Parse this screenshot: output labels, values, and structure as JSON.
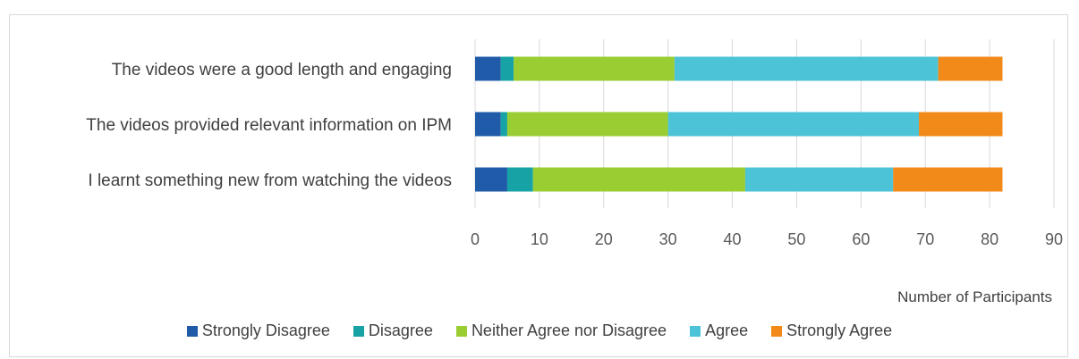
{
  "chart_data": {
    "type": "bar",
    "orientation": "horizontal",
    "stacked": true,
    "categories": [
      "The videos were a good length and engaging",
      "The videos provided relevant information on IPM",
      "I learnt something new from watching the videos"
    ],
    "series": [
      {
        "name": "Strongly Disagree",
        "color": "#1f5ba8",
        "values": [
          4,
          4,
          5
        ]
      },
      {
        "name": "Disagree",
        "color": "#17a2a6",
        "values": [
          2,
          1,
          4
        ]
      },
      {
        "name": "Neither Agree nor Disagree",
        "color": "#9acd32",
        "values": [
          25,
          25,
          33
        ]
      },
      {
        "name": "Agree",
        "color": "#4cc3d6",
        "values": [
          41,
          39,
          23
        ]
      },
      {
        "name": "Strongly Agree",
        "color": "#f28a1a",
        "values": [
          10,
          13,
          17
        ]
      }
    ],
    "xlabel": "Number of Participants",
    "xlim": [
      0,
      90
    ],
    "xticks": [
      "0",
      "10",
      "20",
      "30",
      "40",
      "50",
      "60",
      "70",
      "80",
      "90"
    ],
    "grid": true,
    "legend_position": "bottom"
  }
}
